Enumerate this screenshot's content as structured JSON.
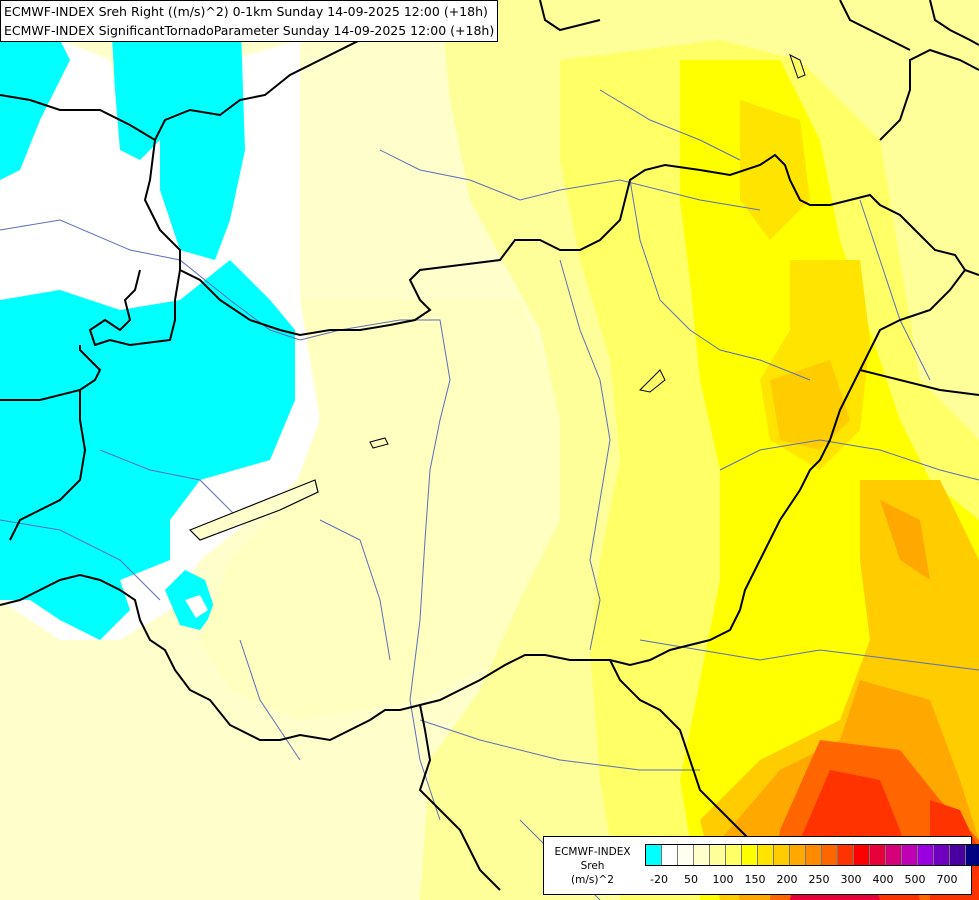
{
  "header": {
    "line1": "ECMWF-INDEX Sreh Right ((m/s)^2) 0-1km Sunday 14-09-2025 12:00 (+18h)",
    "line2": "ECMWF-INDEX SignificantTornadoParameter Sunday 14-09-2025 12:00 (+18h)"
  },
  "legend": {
    "line1": "ECMWF-INDEX",
    "line2": "Sreh",
    "line3": "(m/s)^2",
    "ticks": [
      "-20",
      "50",
      "100",
      "150",
      "200",
      "250",
      "300",
      "400",
      "500",
      "700"
    ],
    "colors": [
      "#00ffff",
      "#ffffff",
      "#fffff0",
      "#ffffcc",
      "#ffff99",
      "#ffff66",
      "#ffff00",
      "#ffe400",
      "#ffcc00",
      "#ffa800",
      "#ff8a00",
      "#ff6600",
      "#ff3300",
      "#ff0000",
      "#e8003c",
      "#d6007a",
      "#c000b4",
      "#9a00e0",
      "#7000c0",
      "#4a00a0",
      "#000080"
    ]
  },
  "colors": {
    "background": "#ffffcc",
    "cyan": "#00ffff",
    "border": "#000000",
    "river": "#5a6fb8"
  }
}
